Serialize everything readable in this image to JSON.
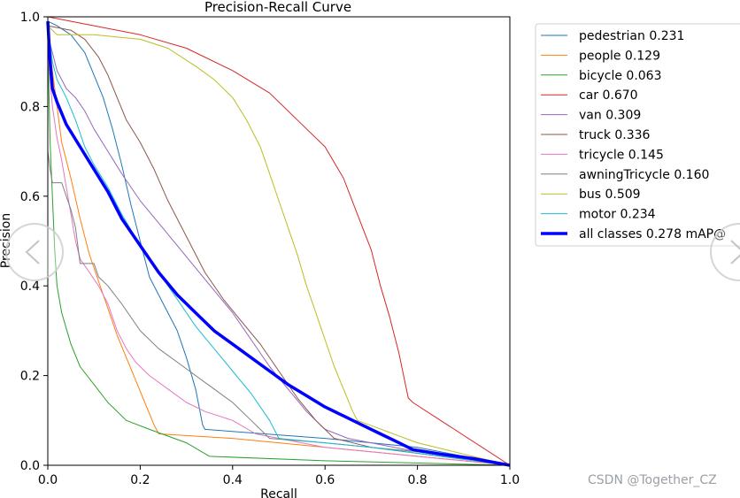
{
  "chart_data": {
    "type": "line",
    "title": "Precision-Recall Curve",
    "xlabel": "Recall",
    "ylabel": "Precision",
    "xlim": [
      0,
      1
    ],
    "ylim": [
      0,
      1
    ],
    "x_ticks": [
      "0.0",
      "0.2",
      "0.4",
      "0.6",
      "0.8",
      "1.0"
    ],
    "y_ticks": [
      "0.0",
      "0.2",
      "0.4",
      "0.6",
      "0.8",
      "1.0"
    ],
    "legend_position": "outside-right",
    "series": [
      {
        "name": "pedestrian 0.231",
        "color": "#1f77b4",
        "width": 1,
        "points": [
          [
            0,
            0.99
          ],
          [
            0.02,
            0.98
          ],
          [
            0.05,
            0.96
          ],
          [
            0.08,
            0.92
          ],
          [
            0.1,
            0.87
          ],
          [
            0.12,
            0.82
          ],
          [
            0.14,
            0.75
          ],
          [
            0.16,
            0.67
          ],
          [
            0.18,
            0.58
          ],
          [
            0.2,
            0.5
          ],
          [
            0.22,
            0.42
          ],
          [
            0.25,
            0.36
          ],
          [
            0.28,
            0.3
          ],
          [
            0.3,
            0.24
          ],
          [
            0.32,
            0.17
          ],
          [
            0.335,
            0.09
          ],
          [
            0.34,
            0.08
          ],
          [
            0.6,
            0.06
          ],
          [
            0.8,
            0.04
          ],
          [
            1.0,
            0
          ]
        ]
      },
      {
        "name": "people 0.129",
        "color": "#ff7f0e",
        "width": 1,
        "points": [
          [
            0,
            0.97
          ],
          [
            0.01,
            0.88
          ],
          [
            0.02,
            0.8
          ],
          [
            0.03,
            0.72
          ],
          [
            0.05,
            0.64
          ],
          [
            0.07,
            0.55
          ],
          [
            0.09,
            0.47
          ],
          [
            0.11,
            0.41
          ],
          [
            0.13,
            0.35
          ],
          [
            0.15,
            0.29
          ],
          [
            0.17,
            0.24
          ],
          [
            0.19,
            0.19
          ],
          [
            0.21,
            0.14
          ],
          [
            0.23,
            0.09
          ],
          [
            0.24,
            0.07
          ],
          [
            0.4,
            0.06
          ],
          [
            0.7,
            0.03
          ],
          [
            1.0,
            0
          ]
        ]
      },
      {
        "name": "bicycle 0.063",
        "color": "#2ca02c",
        "width": 1,
        "points": [
          [
            0,
            0.95
          ],
          [
            0.005,
            0.72
          ],
          [
            0.01,
            0.6
          ],
          [
            0.015,
            0.48
          ],
          [
            0.02,
            0.4
          ],
          [
            0.03,
            0.34
          ],
          [
            0.05,
            0.27
          ],
          [
            0.07,
            0.22
          ],
          [
            0.1,
            0.18
          ],
          [
            0.13,
            0.14
          ],
          [
            0.17,
            0.1
          ],
          [
            0.22,
            0.08
          ],
          [
            0.3,
            0.05
          ],
          [
            0.35,
            0.02
          ],
          [
            0.6,
            0.01
          ],
          [
            1.0,
            0
          ]
        ]
      },
      {
        "name": "car 0.670",
        "color": "#d62728",
        "width": 1,
        "points": [
          [
            0,
            1.0
          ],
          [
            0.1,
            0.98
          ],
          [
            0.2,
            0.96
          ],
          [
            0.3,
            0.93
          ],
          [
            0.4,
            0.88
          ],
          [
            0.48,
            0.83
          ],
          [
            0.55,
            0.76
          ],
          [
            0.6,
            0.71
          ],
          [
            0.64,
            0.64
          ],
          [
            0.67,
            0.56
          ],
          [
            0.7,
            0.48
          ],
          [
            0.72,
            0.4
          ],
          [
            0.74,
            0.33
          ],
          [
            0.76,
            0.25
          ],
          [
            0.78,
            0.15
          ],
          [
            0.79,
            0.14
          ],
          [
            1.0,
            0
          ]
        ]
      },
      {
        "name": "van 0.309",
        "color": "#9467bd",
        "width": 1,
        "points": [
          [
            0,
            0.96
          ],
          [
            0.02,
            0.88
          ],
          [
            0.04,
            0.84
          ],
          [
            0.06,
            0.82
          ],
          [
            0.08,
            0.79
          ],
          [
            0.1,
            0.75
          ],
          [
            0.13,
            0.7
          ],
          [
            0.16,
            0.65
          ],
          [
            0.2,
            0.59
          ],
          [
            0.24,
            0.54
          ],
          [
            0.28,
            0.49
          ],
          [
            0.32,
            0.44
          ],
          [
            0.36,
            0.39
          ],
          [
            0.4,
            0.34
          ],
          [
            0.44,
            0.28
          ],
          [
            0.48,
            0.22
          ],
          [
            0.52,
            0.17
          ],
          [
            0.56,
            0.12
          ],
          [
            0.6,
            0.08
          ],
          [
            0.65,
            0.06
          ],
          [
            0.8,
            0.03
          ],
          [
            1.0,
            0
          ]
        ]
      },
      {
        "name": "truck 0.336",
        "color": "#8c564b",
        "width": 1,
        "points": [
          [
            0,
            0.98
          ],
          [
            0.05,
            0.97
          ],
          [
            0.08,
            0.95
          ],
          [
            0.11,
            0.91
          ],
          [
            0.13,
            0.87
          ],
          [
            0.15,
            0.82
          ],
          [
            0.17,
            0.77
          ],
          [
            0.2,
            0.72
          ],
          [
            0.23,
            0.66
          ],
          [
            0.26,
            0.59
          ],
          [
            0.3,
            0.51
          ],
          [
            0.34,
            0.43
          ],
          [
            0.38,
            0.37
          ],
          [
            0.42,
            0.32
          ],
          [
            0.46,
            0.27
          ],
          [
            0.5,
            0.21
          ],
          [
            0.54,
            0.15
          ],
          [
            0.58,
            0.1
          ],
          [
            0.62,
            0.06
          ],
          [
            0.7,
            0.04
          ],
          [
            0.85,
            0.02
          ],
          [
            1.0,
            0
          ]
        ]
      },
      {
        "name": "tricycle 0.145",
        "color": "#e377c2",
        "width": 1,
        "points": [
          [
            0,
            0.92
          ],
          [
            0.01,
            0.8
          ],
          [
            0.02,
            0.73
          ],
          [
            0.03,
            0.68
          ],
          [
            0.04,
            0.62
          ],
          [
            0.05,
            0.56
          ],
          [
            0.06,
            0.5
          ],
          [
            0.07,
            0.46
          ],
          [
            0.09,
            0.43
          ],
          [
            0.11,
            0.4
          ],
          [
            0.13,
            0.36
          ],
          [
            0.15,
            0.3
          ],
          [
            0.17,
            0.26
          ],
          [
            0.19,
            0.23
          ],
          [
            0.22,
            0.2
          ],
          [
            0.26,
            0.17
          ],
          [
            0.3,
            0.14
          ],
          [
            0.34,
            0.12
          ],
          [
            0.4,
            0.1
          ],
          [
            0.45,
            0.07
          ],
          [
            0.6,
            0.04
          ],
          [
            0.8,
            0.02
          ],
          [
            1.0,
            0
          ]
        ]
      },
      {
        "name": "awningTricycle 0.160",
        "color": "#7f7f7f",
        "width": 1,
        "points": [
          [
            0,
            0.7
          ],
          [
            0.005,
            0.66
          ],
          [
            0.01,
            0.63
          ],
          [
            0.03,
            0.63
          ],
          [
            0.05,
            0.57
          ],
          [
            0.06,
            0.53
          ],
          [
            0.07,
            0.45
          ],
          [
            0.09,
            0.45
          ],
          [
            0.1,
            0.45
          ],
          [
            0.11,
            0.42
          ],
          [
            0.13,
            0.4
          ],
          [
            0.16,
            0.36
          ],
          [
            0.2,
            0.3
          ],
          [
            0.24,
            0.26
          ],
          [
            0.28,
            0.23
          ],
          [
            0.32,
            0.2
          ],
          [
            0.36,
            0.17
          ],
          [
            0.4,
            0.14
          ],
          [
            0.44,
            0.1
          ],
          [
            0.48,
            0.06
          ],
          [
            0.6,
            0.05
          ],
          [
            0.8,
            0.03
          ],
          [
            1.0,
            0
          ]
        ]
      },
      {
        "name": "bus 0.509",
        "color": "#bcbd22",
        "width": 1,
        "points": [
          [
            0,
            0.98
          ],
          [
            0.02,
            0.96
          ],
          [
            0.1,
            0.96
          ],
          [
            0.2,
            0.95
          ],
          [
            0.26,
            0.93
          ],
          [
            0.32,
            0.89
          ],
          [
            0.36,
            0.86
          ],
          [
            0.4,
            0.82
          ],
          [
            0.43,
            0.77
          ],
          [
            0.46,
            0.71
          ],
          [
            0.48,
            0.65
          ],
          [
            0.5,
            0.59
          ],
          [
            0.52,
            0.53
          ],
          [
            0.54,
            0.47
          ],
          [
            0.56,
            0.4
          ],
          [
            0.58,
            0.34
          ],
          [
            0.6,
            0.28
          ],
          [
            0.62,
            0.22
          ],
          [
            0.64,
            0.17
          ],
          [
            0.66,
            0.12
          ],
          [
            0.67,
            0.1
          ],
          [
            0.8,
            0.05
          ],
          [
            1.0,
            0
          ]
        ]
      },
      {
        "name": "motor 0.234",
        "color": "#17becf",
        "width": 1,
        "points": [
          [
            0,
            0.98
          ],
          [
            0.01,
            0.9
          ],
          [
            0.02,
            0.86
          ],
          [
            0.04,
            0.82
          ],
          [
            0.06,
            0.77
          ],
          [
            0.08,
            0.71
          ],
          [
            0.1,
            0.67
          ],
          [
            0.13,
            0.62
          ],
          [
            0.16,
            0.56
          ],
          [
            0.2,
            0.49
          ],
          [
            0.24,
            0.43
          ],
          [
            0.28,
            0.37
          ],
          [
            0.32,
            0.31
          ],
          [
            0.36,
            0.26
          ],
          [
            0.4,
            0.21
          ],
          [
            0.44,
            0.16
          ],
          [
            0.48,
            0.1
          ],
          [
            0.5,
            0.06
          ],
          [
            0.7,
            0.04
          ],
          [
            1.0,
            0
          ]
        ]
      },
      {
        "name": "all classes 0.278 mAP@",
        "color": "#0000ff",
        "width": 3.5,
        "points": [
          [
            0,
            0.99
          ],
          [
            0.005,
            0.9
          ],
          [
            0.01,
            0.84
          ],
          [
            0.02,
            0.81
          ],
          [
            0.04,
            0.76
          ],
          [
            0.07,
            0.71
          ],
          [
            0.1,
            0.66
          ],
          [
            0.13,
            0.61
          ],
          [
            0.16,
            0.55
          ],
          [
            0.2,
            0.49
          ],
          [
            0.24,
            0.43
          ],
          [
            0.28,
            0.38
          ],
          [
            0.32,
            0.34
          ],
          [
            0.36,
            0.3
          ],
          [
            0.4,
            0.27
          ],
          [
            0.44,
            0.24
          ],
          [
            0.48,
            0.21
          ],
          [
            0.52,
            0.18
          ],
          [
            0.56,
            0.155
          ],
          [
            0.6,
            0.13
          ],
          [
            0.64,
            0.11
          ],
          [
            0.68,
            0.09
          ],
          [
            0.72,
            0.07
          ],
          [
            0.76,
            0.05
          ],
          [
            0.79,
            0.035
          ],
          [
            0.85,
            0.025
          ],
          [
            0.92,
            0.015
          ],
          [
            1.0,
            0
          ]
        ]
      }
    ]
  },
  "watermark": "CSDN @Together_CZ",
  "nav": {
    "prev_icon": "chevron-left-icon",
    "next_icon": "chevron-right-icon"
  }
}
